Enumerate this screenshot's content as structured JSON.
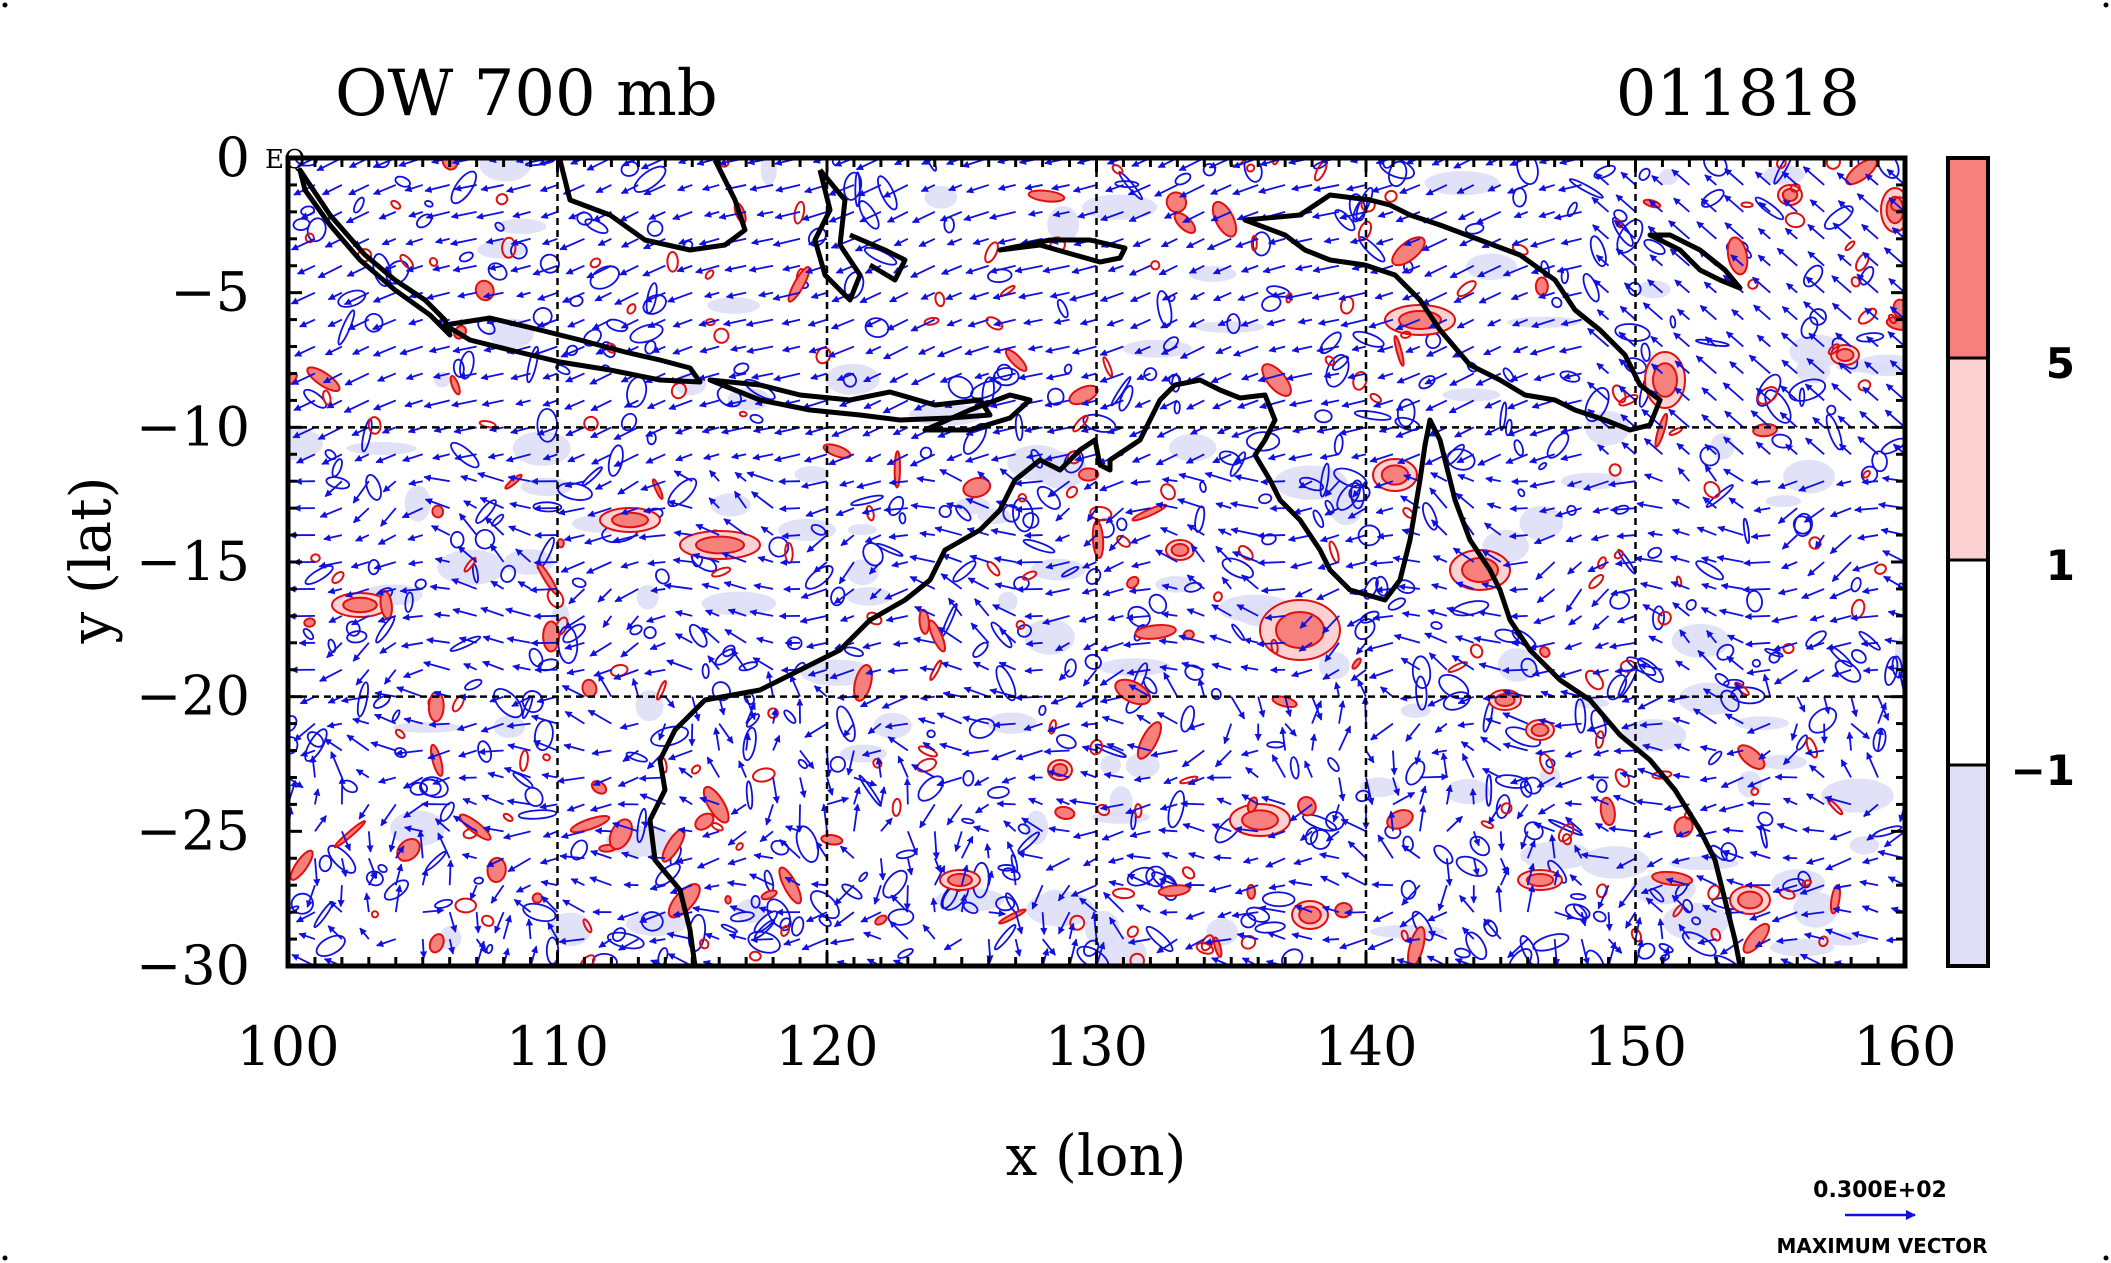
{
  "chart_data": {
    "type": "contour-vector map",
    "title_left": "OW 700 mb",
    "title_right": "011818",
    "corner_label": "EQ",
    "xlabel": "x (lon)",
    "ylabel": "y (lat)",
    "xlim": [
      100,
      160
    ],
    "ylim": [
      -30,
      0
    ],
    "x_ticks": [
      100,
      110,
      120,
      130,
      140,
      150,
      160
    ],
    "y_ticks": [
      0,
      -5,
      -10,
      -15,
      -20,
      -25,
      -30
    ],
    "x_tick_labels": [
      "100",
      "110",
      "120",
      "130",
      "140",
      "150",
      "160"
    ],
    "y_tick_labels": [
      "0",
      "−5",
      "−10",
      "−15",
      "−20",
      "−25",
      "−30"
    ],
    "grid_lines": {
      "lon": [
        110,
        120,
        130,
        140,
        150
      ],
      "lat": [
        -10,
        -20
      ],
      "style": "dashed"
    },
    "colorbar": {
      "levels": [
        "5",
        "1",
        "−1"
      ],
      "bands": [
        {
          "range": "> 5",
          "color": "#f5807c"
        },
        {
          "range": "1 to 5",
          "color": "#fbd1d1"
        },
        {
          "range": "-1 to 1",
          "color": "#ffffff"
        },
        {
          "range": "< -1",
          "color": "#dedef6"
        }
      ]
    },
    "contour_colors": {
      "positive": "#e01010",
      "negative": "#1010e0",
      "coastline": "#000000"
    },
    "vector_key": {
      "value_label": "0.300E+02",
      "caption": "MAXIMUM VECTOR",
      "color": "#1010e0"
    }
  }
}
